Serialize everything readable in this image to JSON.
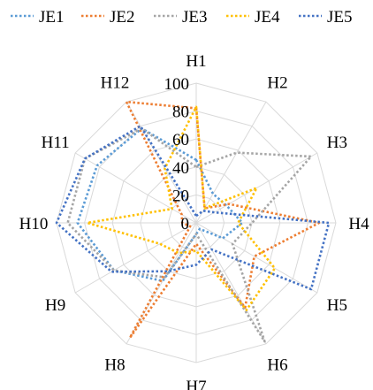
{
  "chart_data": {
    "type": "radar",
    "title": "",
    "categories": [
      "H1",
      "H2",
      "H3",
      "H4",
      "H5",
      "H6",
      "H7",
      "H8",
      "H9",
      "H10",
      "H11",
      "H12"
    ],
    "ticks": [
      "0",
      "20",
      "40",
      "60",
      "80",
      "100"
    ],
    "range": [
      0,
      100
    ],
    "grid": true,
    "legend_position": "top",
    "series": [
      {
        "name": "JE1",
        "color": "#5B9BD5",
        "values": [
          45,
          24,
          25,
          33,
          22,
          5,
          8,
          48,
          68,
          85,
          82,
          78
        ]
      },
      {
        "name": "JE2",
        "color": "#ED7D31",
        "values": [
          82,
          12,
          27,
          88,
          48,
          70,
          15,
          95,
          5,
          10,
          12,
          100
        ]
      },
      {
        "name": "JE3",
        "color": "#A5A5A5",
        "values": [
          40,
          58,
          95,
          40,
          30,
          98,
          8,
          45,
          68,
          92,
          92,
          78
        ]
      },
      {
        "name": "JE4",
        "color": "#FFC000",
        "values": [
          83,
          12,
          50,
          30,
          65,
          72,
          20,
          25,
          30,
          78,
          20,
          45
        ]
      },
      {
        "name": "JE5",
        "color": "#4472C4",
        "values": [
          5,
          10,
          15,
          95,
          95,
          22,
          30,
          40,
          70,
          100,
          92,
          80
        ]
      }
    ]
  }
}
